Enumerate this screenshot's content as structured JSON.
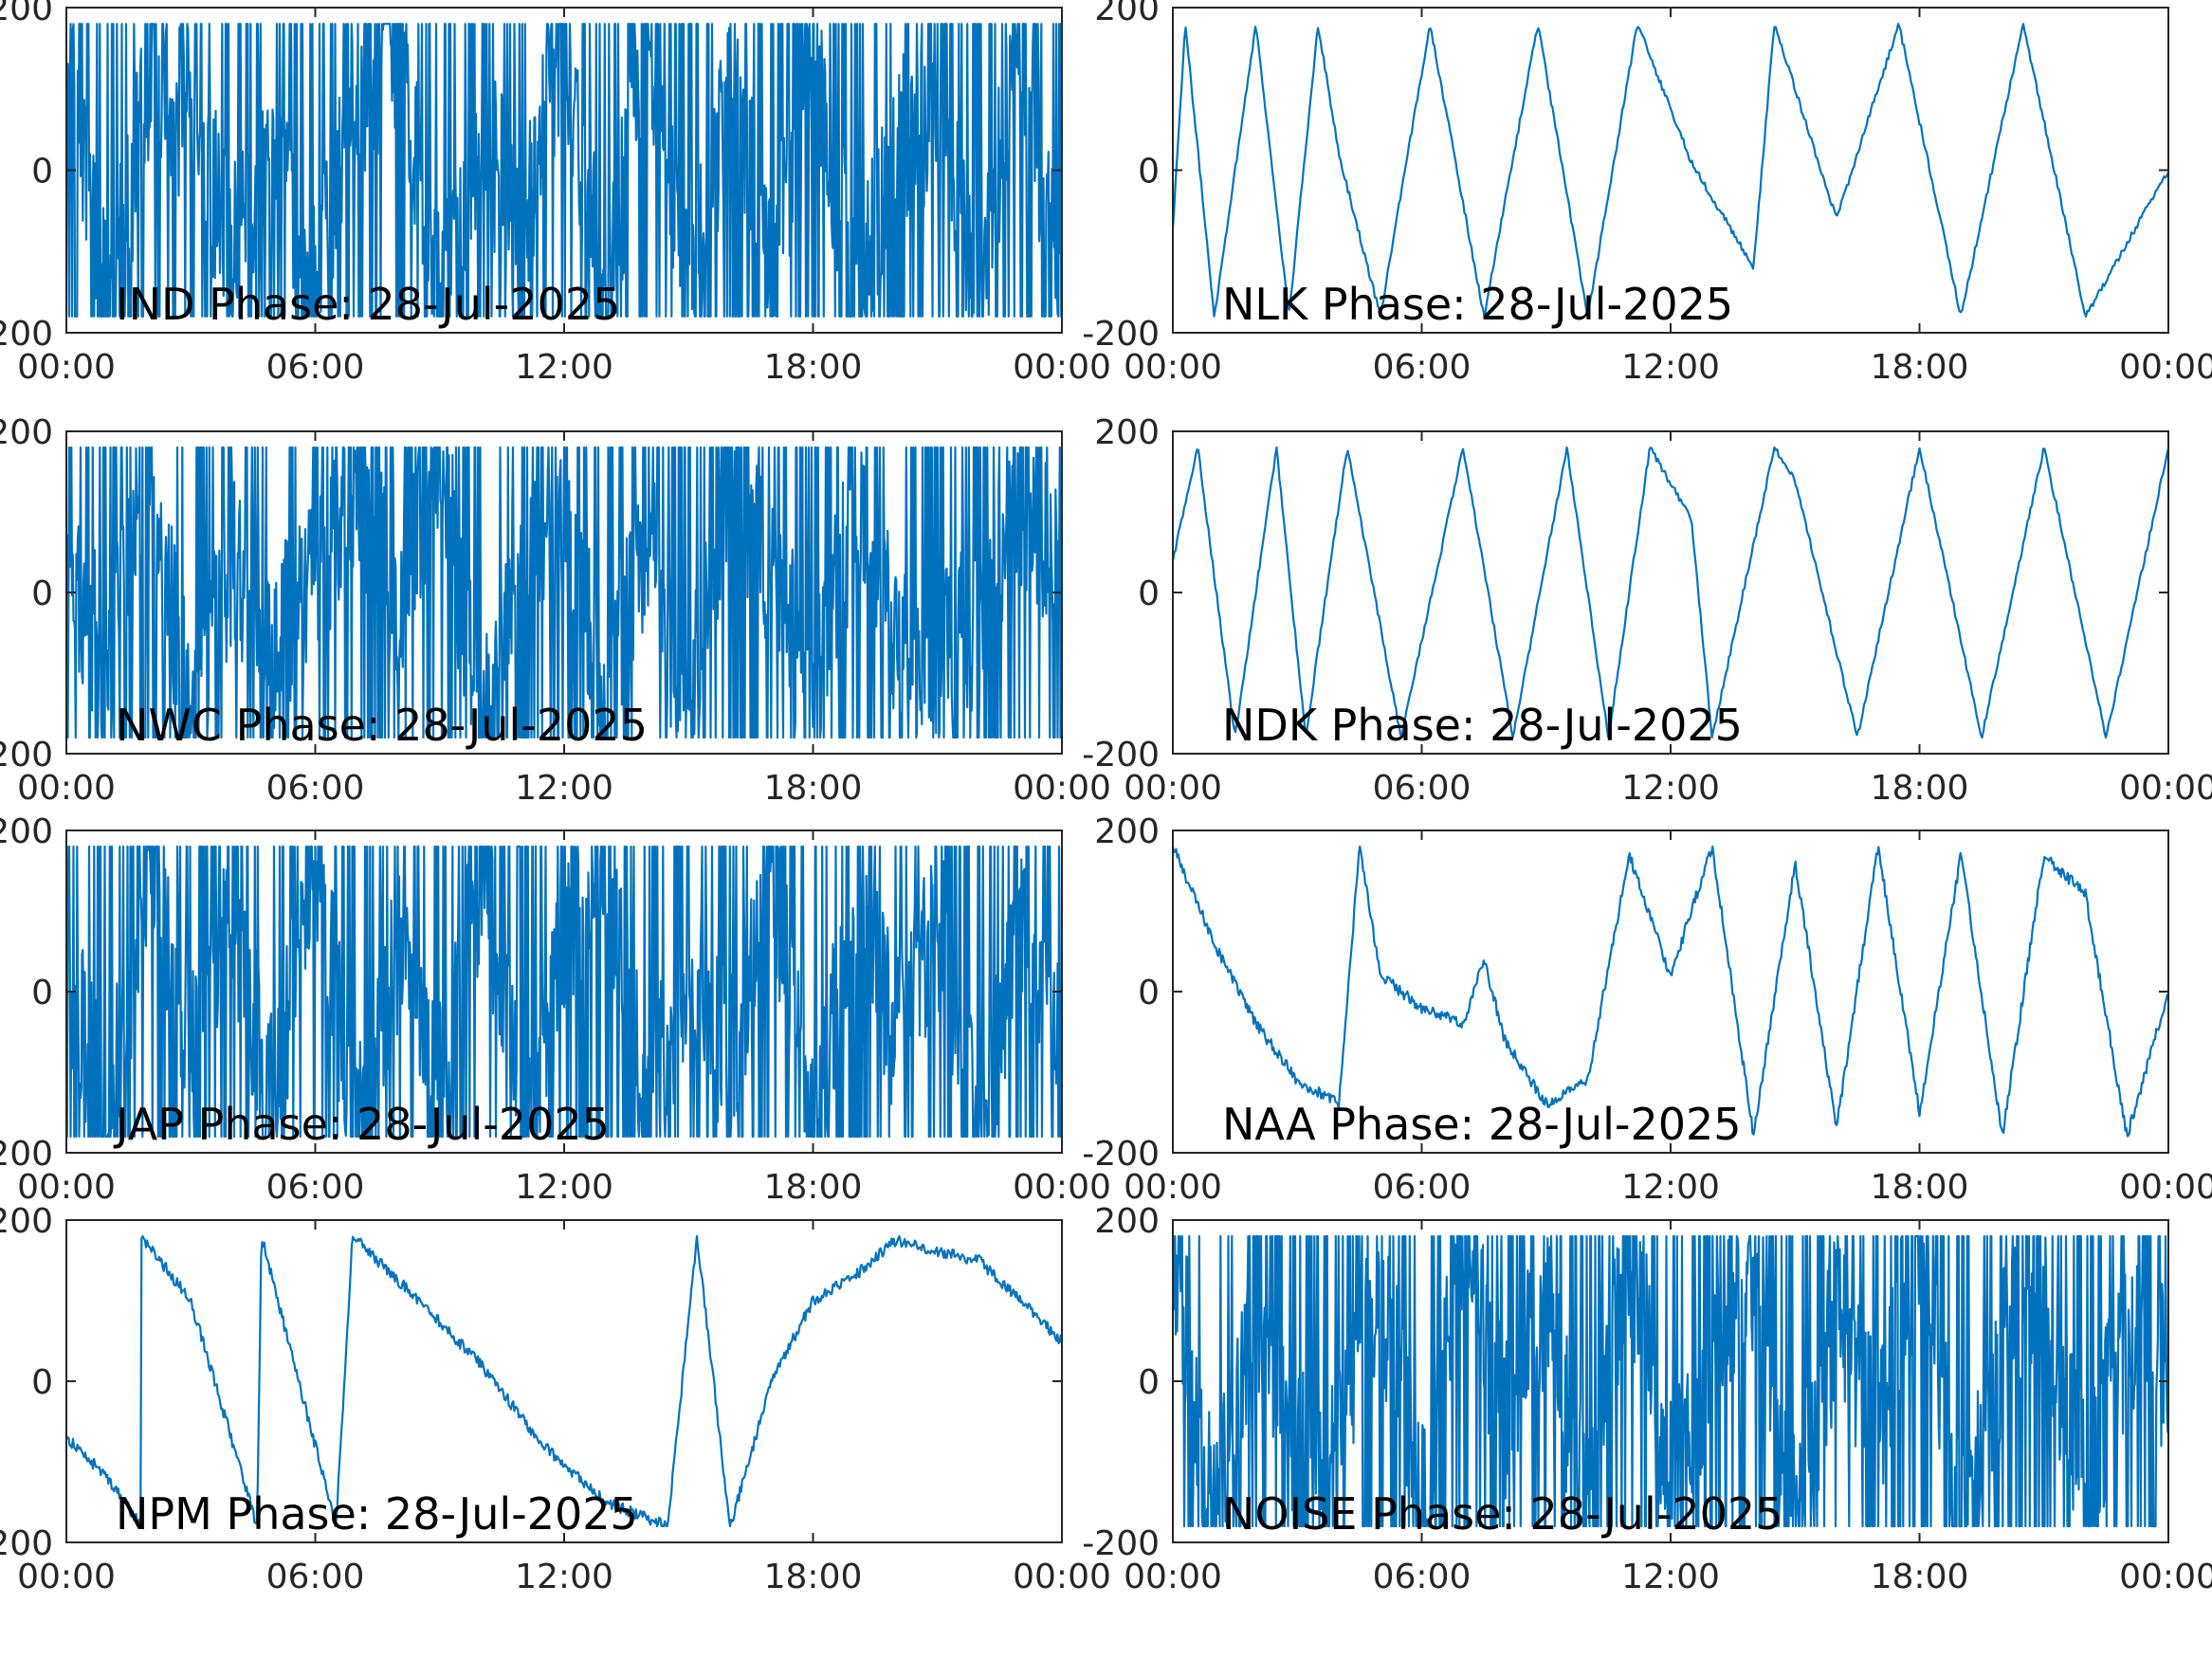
{
  "chart_data": [
    {
      "type": "line",
      "title": "IND Phase: 28-Jul-2025",
      "x_tick_labels": [
        "00:00",
        "06:00",
        "12:00",
        "18:00",
        "00:00"
      ],
      "y_tick_labels": [
        "-200",
        "0",
        "200"
      ],
      "xlim": [
        "28-Jul-2025 00:00",
        "29-Jul-2025 00:00"
      ],
      "ylim": [
        -200,
        200
      ],
      "pattern": "noisy",
      "series": [
        {
          "x_hours": [
            0,
            1,
            2,
            3,
            4,
            5,
            6,
            7,
            8,
            9,
            10,
            11,
            12,
            13,
            14,
            15,
            16,
            17,
            18,
            19,
            20,
            21,
            22,
            23,
            24
          ],
          "values": [
            180,
            -180,
            120,
            60,
            -100,
            20,
            -150,
            90,
            160,
            -170,
            40,
            -60,
            170,
            -175,
            175,
            -180,
            100,
            -120,
            150,
            -160,
            30,
            80,
            -150,
            170,
            -170
          ]
        }
      ]
    },
    {
      "type": "line",
      "title": "NLK Phase: 28-Jul-2025",
      "x_tick_labels": [
        "00:00",
        "06:00",
        "12:00",
        "18:00",
        "00:00"
      ],
      "y_tick_labels": [
        "-200",
        "0",
        "200"
      ],
      "xlim": [
        "28-Jul-2025 00:00",
        "29-Jul-2025 00:00"
      ],
      "ylim": [
        -200,
        200
      ],
      "pattern": "sawtooth",
      "series": [
        {
          "x_hours": [
            0,
            0.3,
            1.0,
            2.0,
            2.8,
            3.5,
            4.0,
            5.0,
            6.2,
            7.5,
            8.8,
            10.0,
            11.2,
            12.5,
            14.0,
            14.5,
            16.0,
            17.5,
            19.0,
            20.5,
            22.0,
            24.0
          ],
          "values": [
            -70,
            180,
            -180,
            180,
            -180,
            180,
            20,
            -180,
            180,
            -180,
            180,
            -180,
            180,
            10,
            -120,
            180,
            -60,
            180,
            -180,
            180,
            -180,
            0
          ]
        }
      ]
    },
    {
      "type": "line",
      "title": "NWC Phase: 28-Jul-2025",
      "x_tick_labels": [
        "00:00",
        "06:00",
        "12:00",
        "18:00",
        "00:00"
      ],
      "y_tick_labels": [
        "-200",
        "0",
        "200"
      ],
      "xlim": [
        "28-Jul-2025 00:00",
        "29-Jul-2025 00:00"
      ],
      "ylim": [
        -200,
        200
      ],
      "pattern": "noisy",
      "series": [
        {
          "x_hours": [
            0,
            1,
            2,
            3,
            4,
            5,
            6,
            7,
            8,
            9,
            10,
            11,
            12,
            13,
            14,
            15,
            16,
            17,
            18,
            19,
            20,
            21,
            22,
            23,
            24
          ],
          "values": [
            60,
            -100,
            160,
            -170,
            40,
            -60,
            20,
            140,
            -20,
            170,
            -180,
            60,
            100,
            -140,
            80,
            -160,
            160,
            20,
            -120,
            90,
            -50,
            -80,
            -30,
            100,
            60
          ]
        }
      ]
    },
    {
      "type": "line",
      "title": "NDK Phase: 28-Jul-2025",
      "x_tick_labels": [
        "00:00",
        "06:00",
        "12:00",
        "18:00",
        "00:00"
      ],
      "y_tick_labels": [
        "-200",
        "0",
        "200"
      ],
      "xlim": [
        "28-Jul-2025 00:00",
        "29-Jul-2025 00:00"
      ],
      "ylim": [
        -200,
        200
      ],
      "pattern": "sawtooth",
      "series": [
        {
          "x_hours": [
            0,
            0.6,
            1.5,
            2.5,
            3.2,
            4.2,
            5.5,
            7.0,
            8.2,
            9.5,
            10.5,
            11.5,
            12.5,
            13.0,
            14.5,
            15.0,
            16.5,
            18.0,
            19.5,
            21.0,
            22.5,
            24.0
          ],
          "values": [
            40,
            180,
            -180,
            180,
            -180,
            180,
            -180,
            180,
            -180,
            180,
            -180,
            180,
            90,
            -180,
            180,
            140,
            -180,
            180,
            -180,
            180,
            -180,
            180
          ]
        }
      ]
    },
    {
      "type": "line",
      "title": "JAP Phase: 28-Jul-2025",
      "x_tick_labels": [
        "00:00",
        "06:00",
        "12:00",
        "18:00",
        "00:00"
      ],
      "y_tick_labels": [
        "-200",
        "0",
        "200"
      ],
      "xlim": [
        "28-Jul-2025 00:00",
        "29-Jul-2025 00:00"
      ],
      "ylim": [
        -200,
        200
      ],
      "pattern": "noisy",
      "series": [
        {
          "x_hours": [
            0,
            1,
            2,
            3,
            4,
            5,
            6,
            7,
            8,
            9,
            10,
            11,
            12,
            13,
            14,
            15,
            16,
            17,
            18,
            19,
            20,
            21,
            22,
            23,
            24
          ],
          "values": [
            30,
            -170,
            180,
            -60,
            100,
            -150,
            170,
            -180,
            60,
            -120,
            150,
            -170,
            80,
            170,
            -160,
            40,
            -100,
            160,
            -180,
            120,
            -60,
            90,
            -170,
            60,
            -40
          ]
        }
      ]
    },
    {
      "type": "line",
      "title": "NAA Phase: 28-Jul-2025",
      "x_tick_labels": [
        "00:00",
        "06:00",
        "12:00",
        "18:00",
        "00:00"
      ],
      "y_tick_labels": [
        "-200",
        "0",
        "200"
      ],
      "xlim": [
        "28-Jul-2025 00:00",
        "29-Jul-2025 00:00"
      ],
      "ylim": [
        -200,
        200
      ],
      "pattern": "smooth",
      "series": [
        {
          "x_hours": [
            0,
            1,
            2,
            3,
            4,
            4.5,
            5,
            6,
            7,
            7.5,
            8,
            9,
            10,
            11,
            12,
            13,
            14,
            15,
            16,
            17,
            18,
            19,
            20,
            21,
            22,
            23,
            24
          ],
          "values": [
            180,
            60,
            -40,
            -110,
            -140,
            180,
            20,
            -20,
            -40,
            40,
            -60,
            -140,
            -110,
            170,
            20,
            180,
            -180,
            160,
            -170,
            180,
            -150,
            170,
            -180,
            170,
            120,
            -180,
            0
          ]
        }
      ]
    },
    {
      "type": "line",
      "title": "NPM Phase: 28-Jul-2025",
      "x_tick_labels": [
        "00:00",
        "06:00",
        "12:00",
        "18:00",
        "00:00"
      ],
      "y_tick_labels": [
        "-200",
        "0",
        "200"
      ],
      "xlim": [
        "28-Jul-2025 00:00",
        "29-Jul-2025 00:00"
      ],
      "ylim": [
        -200,
        200
      ],
      "pattern": "smooth",
      "series": [
        {
          "x_hours": [
            0,
            1.0,
            1.8,
            1.8,
            3.0,
            4.6,
            4.7,
            6.5,
            6.9,
            8.5,
            10.0,
            11.5,
            13.0,
            14.5,
            15.2,
            16.0,
            17.0,
            18.0,
            19.0,
            20.0,
            21.0,
            22.0,
            23.0,
            24.0
          ],
          "values": [
            -70,
            -120,
            -180,
            180,
            100,
            -180,
            180,
            -180,
            180,
            100,
            20,
            -80,
            -150,
            -180,
            180,
            -180,
            0,
            100,
            130,
            175,
            160,
            150,
            100,
            50
          ]
        }
      ]
    },
    {
      "type": "line",
      "title": "NOISE Phase: 28-Jul-2025",
      "x_tick_labels": [
        "00:00",
        "06:00",
        "12:00",
        "18:00",
        "00:00"
      ],
      "y_tick_labels": [
        "-200",
        "0",
        "200"
      ],
      "xlim": [
        "28-Jul-2025 00:00",
        "29-Jul-2025 00:00"
      ],
      "ylim": [
        -200,
        200
      ],
      "pattern": "noisy",
      "series": [
        {
          "x_hours": [
            0,
            1,
            2,
            3,
            4,
            5,
            6,
            7,
            8,
            9,
            10,
            11,
            12,
            13,
            14,
            15,
            16,
            17,
            18,
            19,
            20,
            21,
            22,
            23,
            24
          ],
          "values": [
            170,
            -180,
            60,
            -100,
            -90,
            120,
            -150,
            160,
            -40,
            90,
            -180,
            170,
            -120,
            20,
            150,
            -170,
            80,
            -60,
            180,
            -180,
            40,
            100,
            -140,
            60,
            20
          ]
        }
      ]
    }
  ]
}
